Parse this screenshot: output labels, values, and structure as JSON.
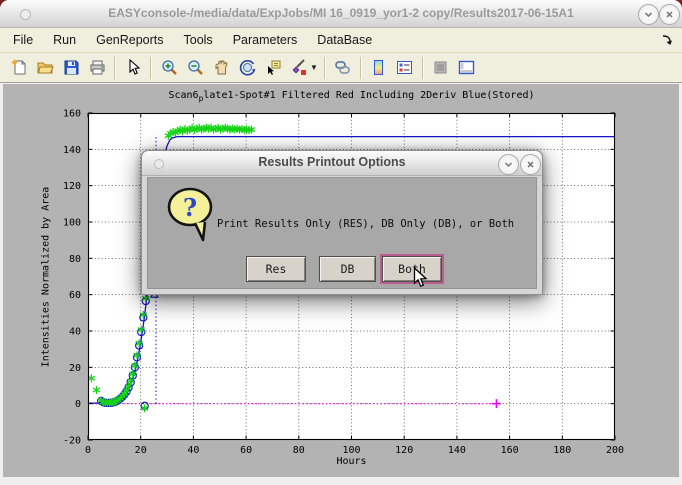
{
  "window": {
    "title": "EASYconsole-/media/data/ExpJobs/MI 16_0919_yor1-2 copy/Results2017-06-15A1",
    "controls": [
      "minimize",
      "close"
    ]
  },
  "menu": {
    "items": [
      "File",
      "Run",
      "GenReports",
      "Tools",
      "Parameters",
      "DataBase"
    ]
  },
  "toolbar": {
    "icons": [
      "new-figure-icon",
      "open-file-icon",
      "save-figure-icon",
      "print-figure-icon",
      "edit-plot-icon",
      "zoom-in-icon",
      "zoom-out-icon",
      "pan-hand-icon",
      "rotate-3d-icon",
      "data-cursor-icon",
      "brush-data-icon",
      "link-plot-icon",
      "insert-colorbar-icon",
      "insert-legend-icon",
      "hide-plot-tools-icon",
      "show-plot-tools-icon"
    ]
  },
  "chart_data": {
    "type": "line",
    "title": "Scan6plate1-Spot#1 Filtered Red Including 2Deriv Blue(Stored)",
    "title_parts": {
      "prefix": "Scan6",
      "sub": "p",
      "rest": "late1-Spot#1 Filtered Red Including 2Deriv Blue(Stored)"
    },
    "xlabel": "Hours",
    "ylabel": "Intensities Normalized by Area",
    "xlim": [
      0,
      200
    ],
    "ylim": [
      -20,
      160
    ],
    "xticks": [
      0,
      20,
      40,
      60,
      80,
      100,
      120,
      140,
      160,
      180,
      200
    ],
    "yticks": [
      -20,
      0,
      20,
      40,
      60,
      80,
      100,
      120,
      140,
      160
    ],
    "grid": true,
    "legend": "none",
    "series": [
      {
        "name": "baseline-magenta-dotted",
        "type": "line",
        "style": "dotted",
        "color": "#ee00ee",
        "width": 1.2,
        "points": [
          [
            0,
            0
          ],
          [
            155,
            0
          ]
        ]
      },
      {
        "name": "threshold-blue-dotted-vertical",
        "type": "line",
        "style": "dotted",
        "color": "#1414cc",
        "width": 1,
        "points": [
          [
            25.8,
            0
          ],
          [
            25.8,
            147
          ]
        ]
      },
      {
        "name": "model-fit-blue-line",
        "type": "line",
        "color": "#1414cc",
        "width": 1.3,
        "points": [
          [
            0,
            0.3
          ],
          [
            3,
            0.3
          ],
          [
            5,
            0.5
          ],
          [
            7,
            0.4
          ],
          [
            9,
            0.5
          ],
          [
            10,
            0.8
          ],
          [
            11,
            1.3
          ],
          [
            12,
            2.2
          ],
          [
            13,
            3.3
          ],
          [
            14,
            4.8
          ],
          [
            15,
            6.9
          ],
          [
            16,
            9.8
          ],
          [
            17,
            13.7
          ],
          [
            18,
            18.8
          ],
          [
            19,
            25.4
          ],
          [
            20,
            33.6
          ],
          [
            21,
            43.4
          ],
          [
            22,
            54.6
          ],
          [
            23,
            67
          ],
          [
            24,
            80
          ],
          [
            25,
            93
          ],
          [
            26,
            106
          ],
          [
            27,
            118
          ],
          [
            28,
            128.5
          ],
          [
            29,
            136.5
          ],
          [
            30,
            142
          ],
          [
            31,
            145
          ],
          [
            32,
            146.3
          ],
          [
            34,
            147
          ],
          [
            40,
            147
          ],
          [
            60,
            147
          ],
          [
            120,
            147
          ],
          [
            200,
            147
          ]
        ]
      },
      {
        "name": "fit-sample-blue-circles",
        "type": "scatter",
        "marker": "circle",
        "color": "#1414cc",
        "width": 1.2,
        "points": [
          [
            5,
            1.5
          ],
          [
            5.8,
            0.8
          ],
          [
            6.6,
            0.5
          ],
          [
            7.4,
            0.4
          ],
          [
            8.2,
            0.4
          ],
          [
            9,
            0.5
          ],
          [
            9.8,
            0.8
          ],
          [
            10.6,
            1.2
          ],
          [
            11.4,
            1.9
          ],
          [
            12.2,
            2.7
          ],
          [
            13,
            3.7
          ],
          [
            13.8,
            5.0
          ],
          [
            14.6,
            6.7
          ],
          [
            15.4,
            8.9
          ],
          [
            16.2,
            11.8
          ],
          [
            17,
            15.5
          ],
          [
            17.8,
            20
          ],
          [
            18.6,
            25.5
          ],
          [
            19.4,
            32
          ],
          [
            20.2,
            39.4
          ],
          [
            21,
            47.5
          ],
          [
            21.9,
            56.5
          ],
          [
            21.5,
            -1.2
          ]
        ]
      },
      {
        "name": "filtered-data-green-asterisks",
        "type": "scatter",
        "marker": "asterisk",
        "color": "#17d417",
        "width": 1.3,
        "points": [
          [
            1.3,
            14
          ],
          [
            3.2,
            7.5
          ],
          [
            5,
            1.8
          ],
          [
            5.8,
            1.0
          ],
          [
            6.6,
            0.7
          ],
          [
            7.4,
            0.5
          ],
          [
            8.2,
            0.5
          ],
          [
            9,
            0.7
          ],
          [
            9.8,
            1.0
          ],
          [
            10.6,
            1.5
          ],
          [
            11.4,
            2.2
          ],
          [
            12.2,
            3.0
          ],
          [
            13,
            4.1
          ],
          [
            13.8,
            5.5
          ],
          [
            14.6,
            7.3
          ],
          [
            15.4,
            9.6
          ],
          [
            16.2,
            12.6
          ],
          [
            17,
            16.4
          ],
          [
            17.8,
            21
          ],
          [
            18.6,
            26.6
          ],
          [
            19.4,
            33.2
          ],
          [
            20.2,
            40.7
          ],
          [
            21,
            48.9
          ],
          [
            21.9,
            58
          ],
          [
            21.5,
            -2.5
          ],
          [
            30.5,
            147.5
          ],
          [
            31.4,
            148.8
          ],
          [
            32.3,
            149.6
          ],
          [
            33.2,
            149.2
          ],
          [
            34.1,
            150.2
          ],
          [
            35,
            150.8
          ],
          [
            35.9,
            149.9
          ],
          [
            36.8,
            151.2
          ],
          [
            37.7,
            150.4
          ],
          [
            38.6,
            150.9
          ],
          [
            39.5,
            151.8
          ],
          [
            40.4,
            150.8
          ],
          [
            41.3,
            151.3
          ],
          [
            42.2,
            151.9
          ],
          [
            43.1,
            150.9
          ],
          [
            44,
            151.4
          ],
          [
            44.9,
            151.9
          ],
          [
            45.8,
            151.4
          ],
          [
            46.7,
            151.9
          ],
          [
            47.6,
            150.9
          ],
          [
            48.5,
            151.4
          ],
          [
            49.4,
            151.9
          ],
          [
            50.3,
            150.9
          ],
          [
            51.2,
            151.4
          ],
          [
            52.1,
            151.9
          ],
          [
            53,
            151.4
          ],
          [
            53.9,
            150.9
          ],
          [
            54.8,
            151.4
          ],
          [
            55.7,
            150.9
          ],
          [
            56.6,
            151.4
          ],
          [
            57.5,
            150.9
          ],
          [
            58.4,
            151.2
          ],
          [
            59.3,
            150.7
          ],
          [
            60.2,
            151.0
          ],
          [
            61.1,
            150.6
          ],
          [
            62,
            150.9
          ]
        ]
      },
      {
        "name": "deriv-peak-triangle",
        "type": "scatter",
        "marker": "triangle-up",
        "color": "#1414cc",
        "width": 1.1,
        "points": [
          [
            25.2,
            60
          ]
        ]
      },
      {
        "name": "baseline-end-magenta-plus",
        "type": "scatter",
        "marker": "plus",
        "color": "#ee00ee",
        "width": 1.5,
        "points": [
          [
            155,
            0
          ]
        ]
      }
    ]
  },
  "dialog": {
    "title": "Results Printout Options",
    "message": "Print Results Only (RES), DB Only (DB), or Both",
    "buttons": [
      "Res",
      "DB",
      "Both"
    ],
    "focused_button": "Both",
    "icon": "question-bubble-icon"
  },
  "colors": {
    "figure_bg": "#b3b3b3",
    "menubar_bg": "#f0eedd",
    "data_green": "#17d417",
    "data_blue": "#1414cc",
    "data_magenta": "#ee00ee",
    "focus_ring": "#bb5f93"
  }
}
